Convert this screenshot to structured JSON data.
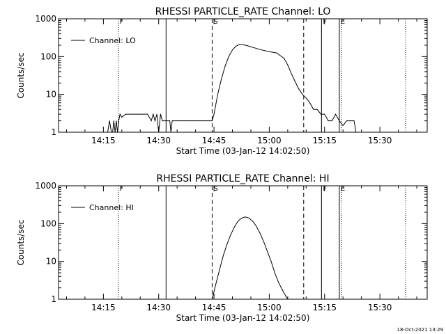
{
  "footer": {
    "timestamp": "18-Oct-2021 13:29"
  },
  "chart_data": [
    {
      "type": "line",
      "title": "RHESSI PARTICLE_RATE Channel: LO",
      "xlabel": "Start Time (03-Jan-12 14:02:50)",
      "ylabel": "Counts/sec",
      "yscale": "log",
      "ylim": [
        1,
        1000
      ],
      "xlim": [
        "14:02:50",
        "15:42:50"
      ],
      "x_ticks": [
        "14:15",
        "14:30",
        "14:45",
        "15:00",
        "15:15",
        "15:30"
      ],
      "y_ticks": [
        "1",
        "10",
        "100",
        "1000"
      ],
      "legend": {
        "placement": "top-left",
        "entries": [
          "Channel: LO"
        ]
      },
      "markers": [
        {
          "time": "14:19:00",
          "style": "dotted",
          "label": "F"
        },
        {
          "time": "14:32:00",
          "style": "solid",
          "label": ""
        },
        {
          "time": "14:44:30",
          "style": "dashed",
          "label": "S"
        },
        {
          "time": "15:09:20",
          "style": "dashed",
          "label": ""
        },
        {
          "time": "15:14:10",
          "style": "solid",
          "label": "F"
        },
        {
          "time": "15:19:00",
          "style": "solid",
          "label": "E"
        },
        {
          "time": "15:19:30",
          "style": "dotted",
          "label": ""
        },
        {
          "time": "15:37:00",
          "style": "dotted",
          "label": ""
        }
      ],
      "series": [
        {
          "name": "Channel: LO",
          "x": [
            "14:16:10",
            "14:16:40",
            "14:17:10",
            "14:17:30",
            "14:17:50",
            "14:18:10",
            "14:18:30",
            "14:18:50",
            "14:19:10",
            "14:19:30",
            "14:20:00",
            "14:21:00",
            "14:23:00",
            "14:25:00",
            "14:27:00",
            "14:28:00",
            "14:28:30",
            "14:29:00",
            "14:29:30",
            "14:30:00",
            "14:30:30",
            "14:31:00",
            "14:32:00",
            "14:33:00",
            "14:33:20",
            "14:33:40",
            "14:34:00",
            "14:35:00",
            "14:36:00",
            "14:37:00",
            "14:38:00",
            "14:39:00",
            "14:40:00",
            "14:41:00",
            "14:42:00",
            "14:43:00",
            "14:44:30",
            "14:45:00",
            "14:46:00",
            "14:47:00",
            "14:48:00",
            "14:49:00",
            "14:50:00",
            "14:51:00",
            "14:52:00",
            "14:53:00",
            "14:54:00",
            "14:56:00",
            "14:58:00",
            "15:00:00",
            "15:02:00",
            "15:04:00",
            "15:05:00",
            "15:06:00",
            "15:07:00",
            "15:08:00",
            "15:09:00",
            "15:10:00",
            "15:11:00",
            "15:12:00",
            "15:13:00",
            "15:14:00",
            "15:15:00",
            "15:16:00",
            "15:17:00",
            "15:18:00",
            "15:19:00",
            "15:20:00",
            "15:21:00",
            "15:22:00",
            "15:23:00",
            "15:23:30"
          ],
          "y": [
            1,
            2,
            1,
            1,
            2,
            1,
            2,
            1,
            2,
            3,
            2.5,
            3,
            3,
            3,
            3,
            2,
            3,
            2,
            3,
            1,
            3,
            2,
            2,
            2,
            1,
            2,
            2,
            2,
            2,
            2,
            2,
            2,
            2,
            2,
            2,
            2,
            2,
            3,
            10,
            25,
            55,
            100,
            150,
            190,
            210,
            205,
            195,
            170,
            150,
            135,
            125,
            90,
            60,
            35,
            22,
            14,
            10,
            8,
            6,
            4,
            4,
            3,
            3,
            2,
            2,
            3,
            2,
            1.5,
            2,
            2,
            2,
            1
          ]
        }
      ]
    },
    {
      "type": "line",
      "title": "RHESSI PARTICLE_RATE Channel: HI",
      "xlabel": "Start Time (03-Jan-12 14:02:50)",
      "ylabel": "Counts/sec",
      "yscale": "log",
      "ylim": [
        1,
        1000
      ],
      "xlim": [
        "14:02:50",
        "15:42:50"
      ],
      "x_ticks": [
        "14:15",
        "14:30",
        "14:45",
        "15:00",
        "15:15",
        "15:30"
      ],
      "y_ticks": [
        "1",
        "10",
        "100",
        "1000"
      ],
      "legend": {
        "placement": "top-left",
        "entries": [
          "Channel: HI"
        ]
      },
      "markers": [
        {
          "time": "14:19:00",
          "style": "dotted",
          "label": "F"
        },
        {
          "time": "14:32:00",
          "style": "solid",
          "label": ""
        },
        {
          "time": "14:44:30",
          "style": "dashed",
          "label": "S"
        },
        {
          "time": "15:09:20",
          "style": "dashed",
          "label": ""
        },
        {
          "time": "15:14:10",
          "style": "solid",
          "label": "F"
        },
        {
          "time": "15:19:00",
          "style": "solid",
          "label": "E"
        },
        {
          "time": "15:19:30",
          "style": "dotted",
          "label": ""
        },
        {
          "time": "15:37:00",
          "style": "dotted",
          "label": ""
        }
      ],
      "series": [
        {
          "name": "Channel: HI",
          "x": [
            "14:44:30",
            "14:45:30",
            "14:46:30",
            "14:47:30",
            "14:48:30",
            "14:49:30",
            "14:50:30",
            "14:51:30",
            "14:52:30",
            "14:53:30",
            "14:54:30",
            "14:55:30",
            "14:56:30",
            "14:57:30",
            "14:58:30",
            "14:59:30",
            "15:00:30",
            "15:01:30",
            "15:02:30",
            "15:03:30",
            "15:04:30",
            "15:05:00"
          ],
          "y": [
            1,
            2.5,
            6,
            14,
            28,
            50,
            80,
            115,
            140,
            150,
            140,
            115,
            85,
            55,
            33,
            18,
            10,
            5,
            2.8,
            1.8,
            1.2,
            1
          ]
        }
      ]
    }
  ]
}
